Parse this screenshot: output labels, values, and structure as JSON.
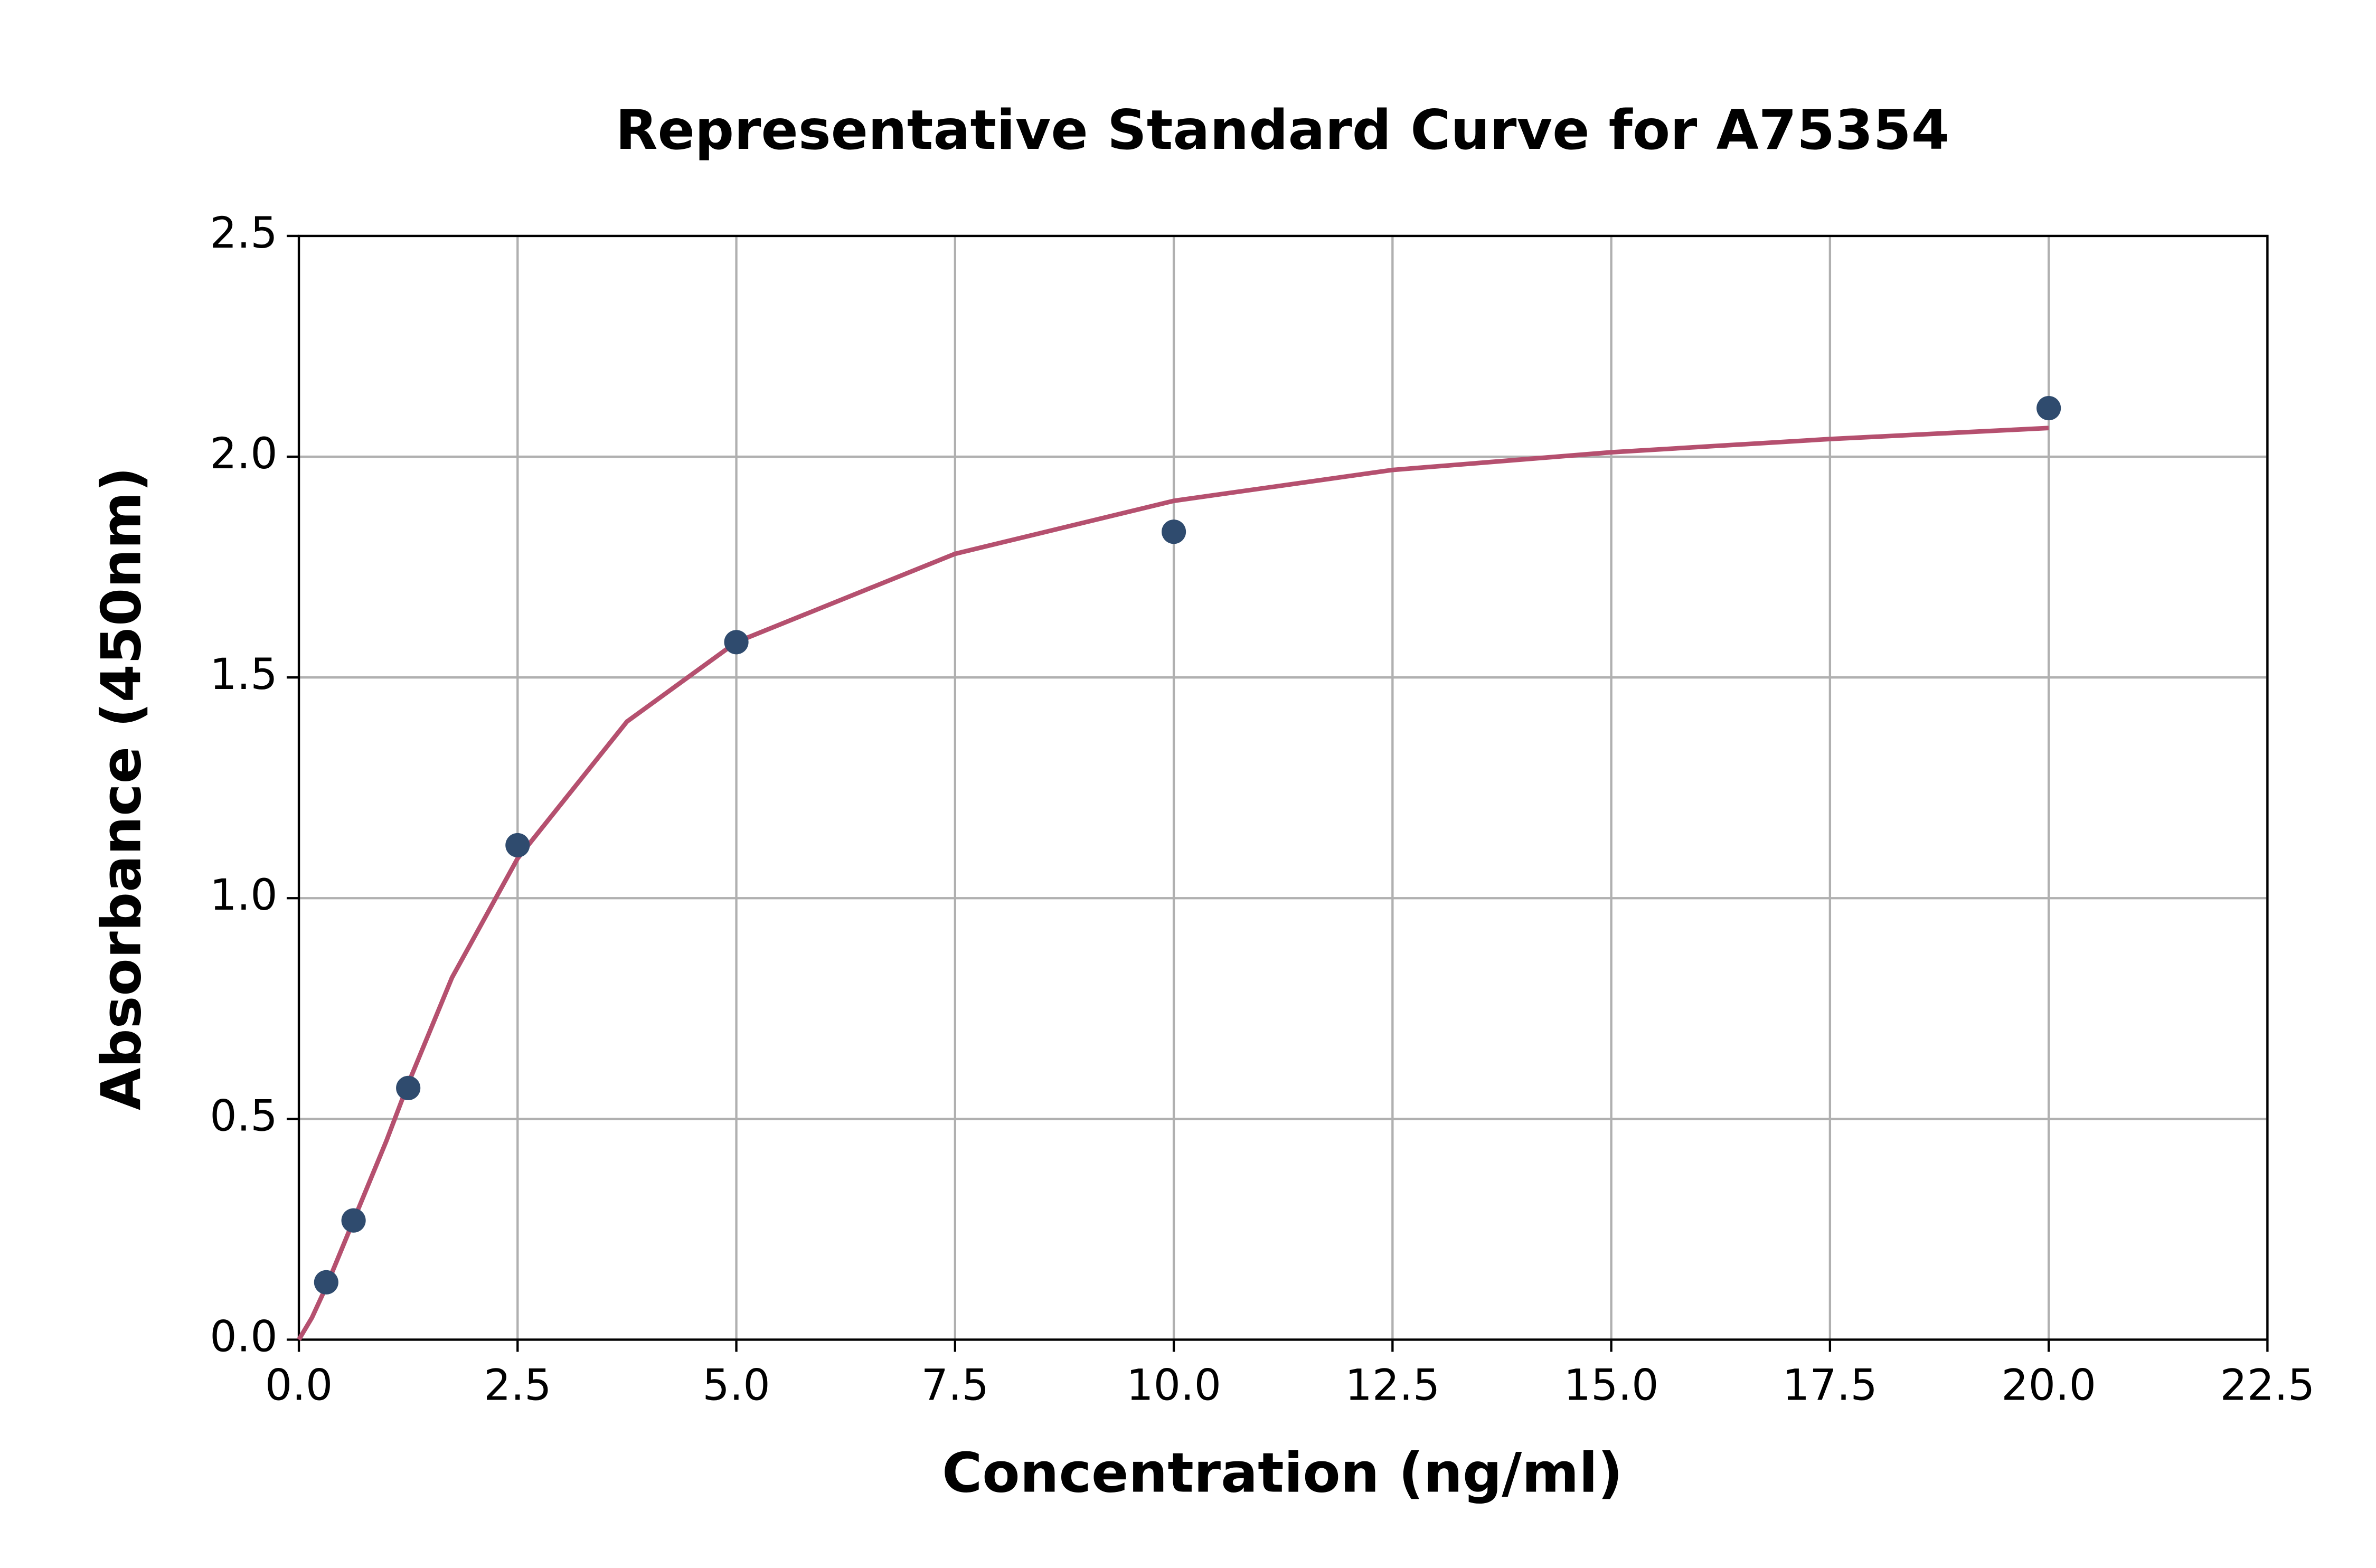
{
  "chart_data": {
    "type": "scatter",
    "title": "Representative Standard Curve for A75354",
    "x_label": "Concentration (ng/ml)",
    "y_label": "Absorbance (450nm)",
    "xlim": [
      0,
      22.5
    ],
    "ylim": [
      0,
      2.5
    ],
    "xticks": [
      {
        "value": 0,
        "label": "0.0"
      },
      2.5,
      {
        "value": 5,
        "label": "5.0"
      },
      7.5,
      {
        "value": 10,
        "label": "10.0"
      },
      12.5,
      {
        "value": 15,
        "label": "15.0"
      },
      17.5,
      {
        "value": 20,
        "label": "20.0"
      },
      22.5
    ],
    "yticks": [
      {
        "value": 0,
        "label": "0.0"
      },
      0.5,
      {
        "value": 1,
        "label": "1.0"
      },
      1.5,
      {
        "value": 2,
        "label": "2.0"
      },
      2.5
    ],
    "grid": true,
    "series": [
      {
        "mode": "markers",
        "color": "#2f4b6e",
        "x": [
          0.3125,
          0.625,
          1.25,
          2.5,
          5,
          10,
          20
        ],
        "values": [
          0.13,
          0.27,
          0.57,
          1.12,
          1.58,
          1.83,
          2.11
        ]
      },
      {
        "mode": "line",
        "color": "#b5506f",
        "x": [
          0,
          0.15,
          0.3125,
          0.625,
          1,
          1.25,
          1.75,
          2.5,
          3.75,
          5,
          7.5,
          10,
          12.5,
          15,
          17.5,
          20
        ],
        "values": [
          0,
          0.05,
          0.12,
          0.27,
          0.45,
          0.58,
          0.82,
          1.09,
          1.4,
          1.58,
          1.78,
          1.9,
          1.97,
          2.01,
          2.04,
          2.065
        ]
      }
    ]
  }
}
